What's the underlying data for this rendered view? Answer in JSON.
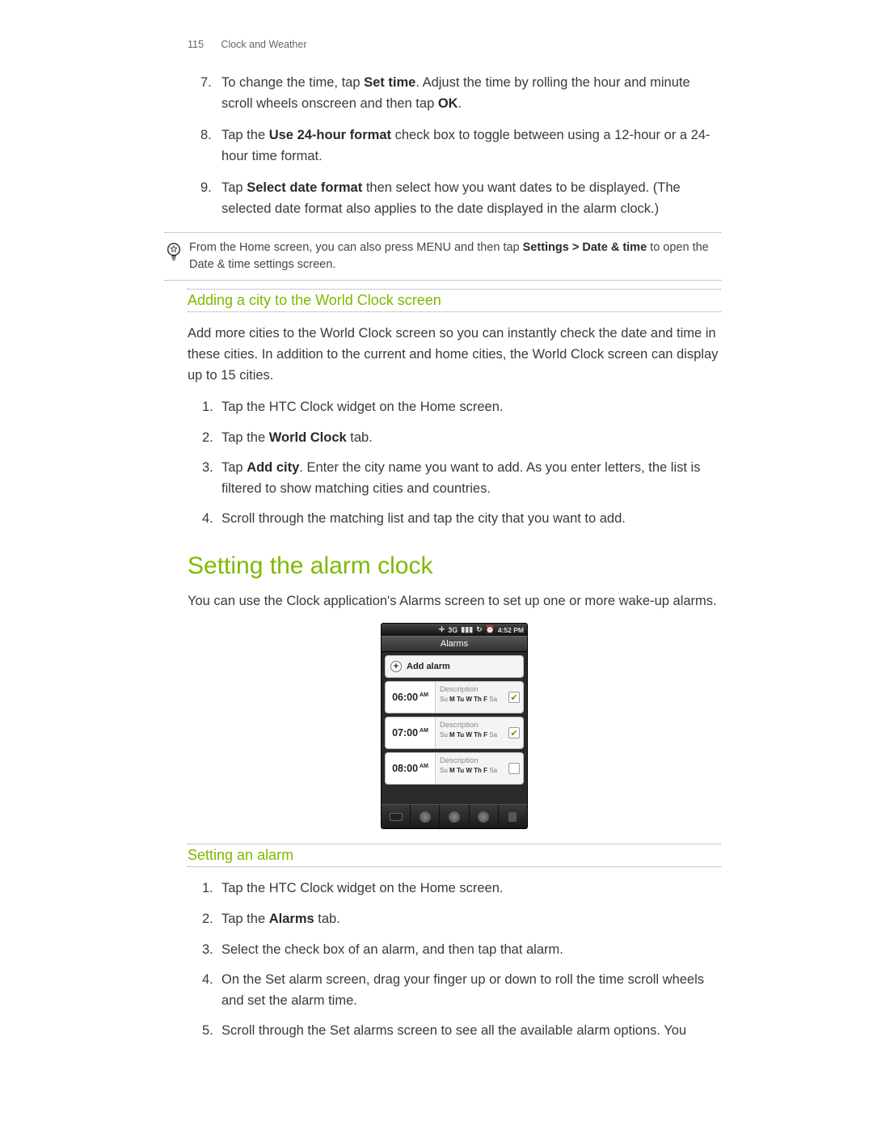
{
  "header": {
    "page_number": "115",
    "section": "Clock and Weather"
  },
  "list_time": [
    {
      "num": "7.",
      "pre": "To change the time, tap ",
      "b1": "Set time",
      "mid": ". Adjust the time by rolling the hour and minute scroll wheels onscreen and then tap ",
      "b2": "OK",
      "post": "."
    },
    {
      "num": "8.",
      "pre": "Tap the ",
      "b1": "Use 24-hour format",
      "mid": " check box to toggle between using a 12-hour or a 24-hour time format.",
      "b2": "",
      "post": ""
    },
    {
      "num": "9.",
      "pre": "Tap ",
      "b1": "Select date format",
      "mid": " then select how you want dates to be displayed. (The selected date format also applies to the date displayed in the alarm clock.)",
      "b2": "",
      "post": ""
    }
  ],
  "tip": {
    "pre": "From the Home screen, you can also press MENU and then tap ",
    "bold": "Settings > Date & time",
    "post": " to open the Date & time settings screen."
  },
  "sub1_title": "Adding a city to the World Clock screen",
  "sub1_intro": "Add more cities to the World Clock screen so you can instantly check the date and time in these cities. In addition to the current and home cities, the World Clock screen can display up to 15 cities.",
  "list_worldclock": [
    {
      "num": "1.",
      "pre": "Tap the HTC Clock widget on the Home screen.",
      "b1": "",
      "mid": "",
      "b2": "",
      "post": ""
    },
    {
      "num": "2.",
      "pre": "Tap the ",
      "b1": "World Clock",
      "mid": " tab.",
      "b2": "",
      "post": ""
    },
    {
      "num": "3.",
      "pre": "Tap ",
      "b1": "Add city",
      "mid": ". Enter the city name you want to add. As you enter letters, the list is filtered to show matching cities and countries.",
      "b2": "",
      "post": ""
    },
    {
      "num": "4.",
      "pre": "Scroll through the matching list and tap the city that you want to add.",
      "b1": "",
      "mid": "",
      "b2": "",
      "post": ""
    }
  ],
  "h2": "Setting the alarm clock",
  "h2_intro": "You can use the Clock application's Alarms screen to set up one or more wake-up alarms.",
  "phone": {
    "status_time": "4:52 PM",
    "title": "Alarms",
    "add_label": "Add alarm",
    "desc_label": "Description",
    "days": {
      "su": "Su",
      "m": "M",
      "tu": "Tu",
      "w": "W",
      "th": "Th",
      "f": "F",
      "sa": "Sa"
    },
    "alarms": [
      {
        "time": "06:00",
        "ampm": "AM",
        "checked": true
      },
      {
        "time": "07:00",
        "ampm": "AM",
        "checked": true
      },
      {
        "time": "08:00",
        "ampm": "AM",
        "checked": false
      }
    ]
  },
  "sub2_title": "Setting an alarm",
  "list_setalarm": [
    {
      "num": "1.",
      "pre": "Tap the HTC Clock widget on the Home screen.",
      "b1": "",
      "mid": "",
      "b2": "",
      "post": ""
    },
    {
      "num": "2.",
      "pre": "Tap the ",
      "b1": "Alarms",
      "mid": " tab.",
      "b2": "",
      "post": ""
    },
    {
      "num": "3.",
      "pre": "Select the check box of an alarm, and then tap that alarm.",
      "b1": "",
      "mid": "",
      "b2": "",
      "post": ""
    },
    {
      "num": "4.",
      "pre": "On the Set alarm screen, drag your finger up or down to roll the time scroll wheels and set the alarm time.",
      "b1": "",
      "mid": "",
      "b2": "",
      "post": ""
    },
    {
      "num": "5.",
      "pre": "Scroll through the Set alarms screen to see all the available alarm options. You",
      "b1": "",
      "mid": "",
      "b2": "",
      "post": ""
    }
  ]
}
